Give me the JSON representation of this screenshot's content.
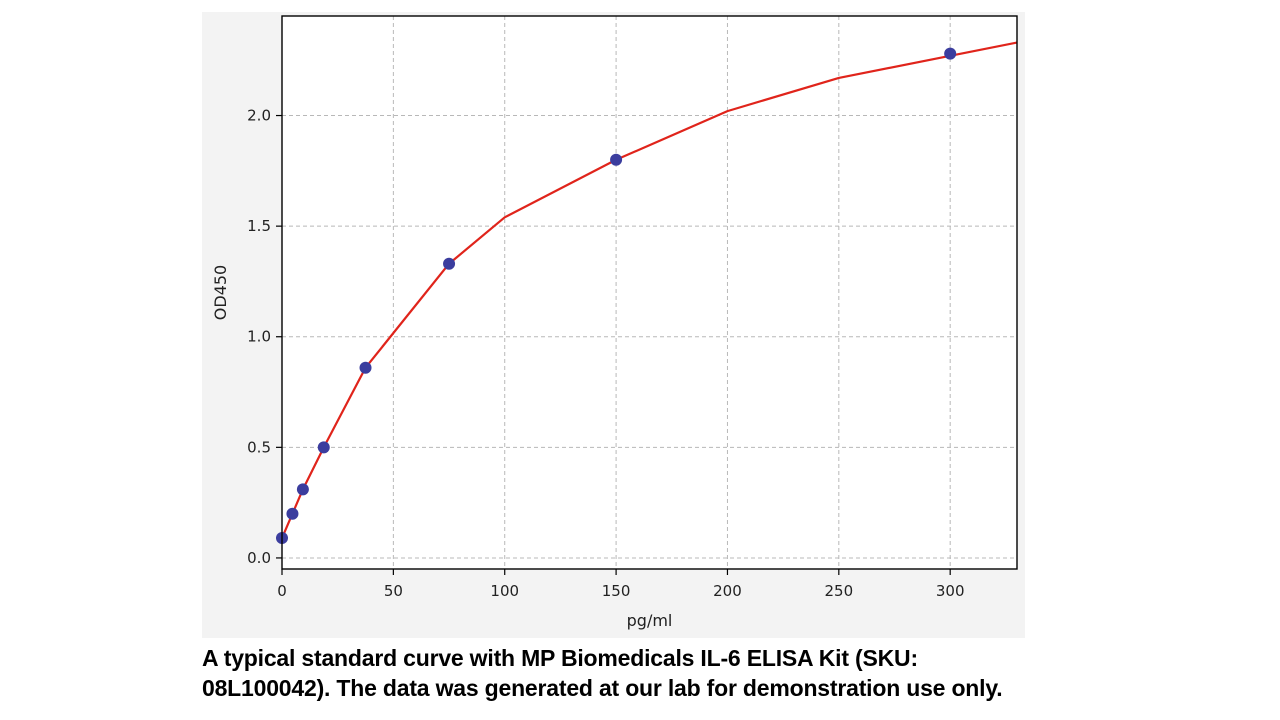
{
  "chart_data": {
    "type": "scatter",
    "title": "",
    "xlabel": "pg/ml",
    "ylabel": "OD450",
    "xlim": [
      0,
      330
    ],
    "ylim": [
      -0.05,
      2.45
    ],
    "xticks": [
      0,
      50,
      100,
      150,
      200,
      250,
      300
    ],
    "yticks": [
      0.0,
      0.5,
      1.0,
      1.5,
      2.0
    ],
    "xtick_labels": [
      "0",
      "50",
      "100",
      "150",
      "200",
      "250",
      "300"
    ],
    "ytick_labels": [
      "0.0",
      "0.5",
      "1.0",
      "1.5",
      "2.0"
    ],
    "grid": true,
    "series": [
      {
        "type": "scatter",
        "x": [
          0,
          4.69,
          9.38,
          18.75,
          37.5,
          75,
          150,
          300
        ],
        "y": [
          0.09,
          0.2,
          0.31,
          0.5,
          0.86,
          1.33,
          1.8,
          2.28
        ]
      },
      {
        "type": "line",
        "x": [
          0,
          4.69,
          9.38,
          18.75,
          37.5,
          75,
          100,
          150,
          200,
          250,
          300,
          330
        ],
        "y": [
          0.09,
          0.2,
          0.31,
          0.5,
          0.86,
          1.33,
          1.54,
          1.8,
          2.02,
          2.17,
          2.27,
          2.33
        ]
      }
    ],
    "colors": {
      "points": "#3b3d9e",
      "curve": "#e0241b",
      "grid": "#b8b8b8",
      "background": "#ffffff",
      "panel": "#f3f3f3"
    }
  },
  "caption": {
    "line1": "A typical standard curve with MP Biomedicals IL-6 ELISA Kit (SKU:",
    "line2": "08L100042). The data was generated at our lab for demonstration use only."
  }
}
